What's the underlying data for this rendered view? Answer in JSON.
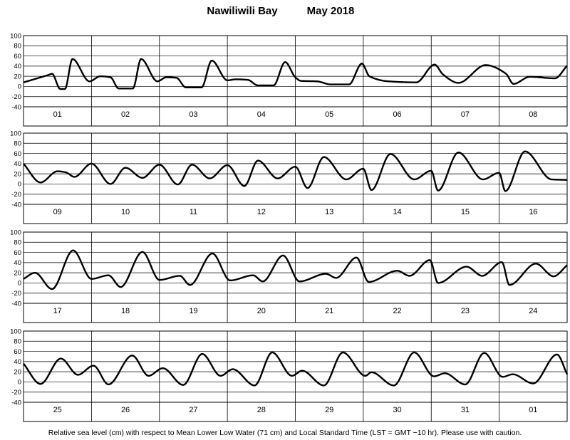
{
  "chart_data": {
    "type": "line",
    "title": "Nawiliwili Bay",
    "period": "May   2018",
    "ylabel": "Relative sea level (cm)",
    "ylim": [
      -40,
      100
    ],
    "yticks": [
      100,
      80,
      60,
      40,
      20,
      0,
      -20,
      -40
    ],
    "grid": true,
    "footer": "Relative sea level (cm) with respect to Mean Lower Low Water (71 cm) and Local Standard Time (LST = GMT −10 hr). Please use with caution.",
    "panels": [
      {
        "day_labels": [
          "01",
          "02",
          "03",
          "04",
          "05",
          "06",
          "07",
          "08"
        ],
        "series": [
          {
            "x": [
              0,
              0.375,
              0.42,
              0.54,
              0.61,
              0.72,
              0.97,
              1.13,
              1.28,
              1.4,
              1.61,
              1.73,
              1.97,
              2.1,
              2.25,
              2.39,
              2.62,
              2.77,
              3.0,
              3.12,
              3.3,
              3.45,
              3.68,
              3.85,
              4.0,
              4.08,
              4.32,
              4.52,
              4.79,
              4.98,
              5.09,
              5.38,
              5.78,
              6.05,
              6.17,
              6.4,
              6.8,
              7.1,
              7.21,
              7.45,
              7.82,
              8.0
            ],
            "y": [
              8,
              23,
              25,
              -5,
              -5,
              54,
              10,
              20,
              18,
              -4,
              -4,
              54,
              10,
              18,
              17,
              -2,
              -2,
              51,
              12,
              14,
              13,
              2,
              2,
              48,
              18,
              11,
              10,
              4,
              4,
              45,
              20,
              10,
              8,
              43,
              24,
              7,
              42,
              25,
              5,
              19,
              16,
              41
            ]
          }
        ]
      },
      {
        "day_labels": [
          "09",
          "10",
          "11",
          "12",
          "13",
          "14",
          "15",
          "16"
        ],
        "series": [
          {
            "x": [
              0,
              0.25,
              0.5,
              0.62,
              0.75,
              1.0,
              1.28,
              1.5,
              1.75,
              2.0,
              2.27,
              2.48,
              2.74,
              3.0,
              3.25,
              3.45,
              3.74,
              4.0,
              4.18,
              4.42,
              4.75,
              5.0,
              5.12,
              5.4,
              5.75,
              6.0,
              6.1,
              6.4,
              6.76,
              7.0,
              7.09,
              7.38,
              7.77,
              8.0
            ],
            "y": [
              40,
              3,
              25,
              23,
              14,
              40,
              0,
              32,
              12,
              38,
              -1,
              38,
              11,
              37,
              -4,
              46,
              11,
              34,
              -8,
              53,
              9,
              30,
              -12,
              59,
              9,
              26,
              -13,
              62,
              9,
              22,
              -14,
              64,
              9,
              8
            ]
          }
        ]
      },
      {
        "day_labels": [
          "17",
          "18",
          "19",
          "20",
          "21",
          "22",
          "23",
          "24"
        ],
        "series": [
          {
            "x": [
              0,
              0.17,
              0.42,
              0.73,
              1.0,
              1.25,
              1.43,
              1.75,
              2.0,
              2.3,
              2.45,
              2.78,
              3.04,
              3.38,
              3.52,
              3.82,
              4.06,
              4.45,
              4.6,
              4.9,
              5.08,
              5.5,
              5.68,
              5.98,
              6.1,
              6.52,
              6.75,
              7.04,
              7.15,
              7.54,
              7.8,
              8.0
            ],
            "y": [
              8,
              20,
              -12,
              64,
              8,
              15,
              -8,
              61,
              6,
              14,
              -4,
              58,
              5,
              15,
              3,
              54,
              3,
              18,
              10,
              50,
              2,
              24,
              14,
              45,
              0,
              32,
              14,
              41,
              -4,
              38,
              13,
              35
            ]
          }
        ]
      },
      {
        "day_labels": [
          "25",
          "26",
          "27",
          "28",
          "29",
          "30",
          "31",
          "01"
        ],
        "series": [
          {
            "x": [
              0,
              0.25,
              0.55,
              0.8,
              1.03,
              1.25,
              1.6,
              1.84,
              2.05,
              2.35,
              2.63,
              2.9,
              3.08,
              3.4,
              3.66,
              3.95,
              4.1,
              4.42,
              4.7,
              5.03,
              5.12,
              5.45,
              5.75,
              6.04,
              6.2,
              6.5,
              6.78,
              7.05,
              7.2,
              7.5,
              7.85,
              8.0
            ],
            "y": [
              36,
              -4,
              46,
              14,
              32,
              -5,
              52,
              12,
              27,
              -6,
              55,
              12,
              25,
              -7,
              58,
              12,
              22,
              -7,
              58,
              12,
              19,
              -7,
              58,
              11,
              17,
              -5,
              57,
              10,
              15,
              -3,
              54,
              15
            ]
          }
        ]
      }
    ]
  }
}
